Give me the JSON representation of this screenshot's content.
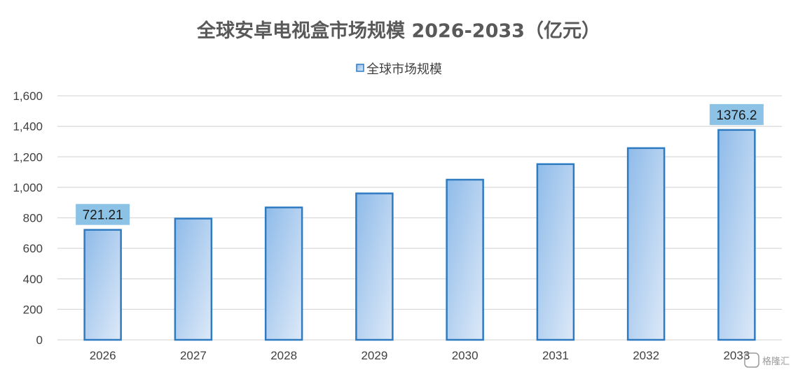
{
  "chart_data": {
    "type": "bar",
    "title": "全球安卓电视盒市场规模 2026-2033（亿元）",
    "xlabel": "",
    "ylabel": "",
    "categories": [
      "2026",
      "2027",
      "2028",
      "2029",
      "2030",
      "2031",
      "2032",
      "2033"
    ],
    "series": [
      {
        "name": "全球市场规模",
        "values": [
          721.21,
          795,
          868,
          960,
          1050,
          1152,
          1257,
          1376.2
        ]
      }
    ],
    "data_labels": [
      {
        "category": "2026",
        "text": "721.21"
      },
      {
        "category": "2033",
        "text": "1376.2"
      }
    ],
    "ylim": [
      0,
      1600
    ],
    "yticks": [
      0,
      200,
      400,
      600,
      800,
      1000,
      1200,
      1400,
      1600
    ],
    "ytick_labels": [
      "0",
      "200",
      "400",
      "600",
      "800",
      "1,000",
      "1,200",
      "1,400",
      "1,600"
    ],
    "grid": true,
    "legend_position": "top",
    "colors": {
      "bar_fill_top": "#8fbbe9",
      "bar_fill_bottom": "#dde9f8",
      "bar_stroke": "#2e7bc1",
      "label_bg": "#8cc2e6",
      "grid": "#d9d9d9"
    }
  },
  "watermark": {
    "text": "格隆汇"
  }
}
